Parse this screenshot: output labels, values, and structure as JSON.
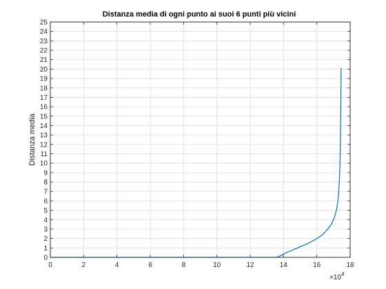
{
  "chart_data": {
    "type": "line",
    "title": "Distanza media di ogni punto ai suoi 6 punti più vicini",
    "xlabel": "",
    "ylabel": "Distanza media",
    "x_exponent_label": "×10",
    "x_exponent_power": "4",
    "xlim": [
      0,
      180000
    ],
    "ylim": [
      0,
      25
    ],
    "x_ticks": [
      0,
      20000,
      40000,
      60000,
      80000,
      100000,
      120000,
      140000,
      160000,
      180000
    ],
    "x_tick_labels": [
      "0",
      "2",
      "4",
      "6",
      "8",
      "10",
      "12",
      "14",
      "16",
      "18"
    ],
    "y_ticks": [
      0,
      1,
      2,
      3,
      4,
      5,
      6,
      7,
      8,
      9,
      10,
      11,
      12,
      13,
      14,
      15,
      16,
      17,
      18,
      19,
      20,
      21,
      22,
      23,
      24,
      25
    ],
    "y_tick_labels": [
      "0",
      "1",
      "2",
      "3",
      "4",
      "5",
      "6",
      "7",
      "8",
      "9",
      "10",
      "11",
      "12",
      "13",
      "14",
      "15",
      "16",
      "17",
      "18",
      "19",
      "20",
      "21",
      "22",
      "23",
      "24",
      "25"
    ],
    "grid": true,
    "series": [
      {
        "color": "#0072bd",
        "x": [
          0,
          135000,
          137000,
          139000,
          141000,
          143000,
          145000,
          147000,
          149000,
          151000,
          153000,
          155000,
          157000,
          159000,
          161000,
          163000,
          165000,
          167000,
          169000,
          170000,
          171000,
          172000,
          172500,
          173000,
          173300,
          173600,
          173800,
          174000,
          174200,
          174400,
          174500,
          174600
        ],
        "y": [
          0.0,
          0.0,
          0.05,
          0.25,
          0.45,
          0.6,
          0.75,
          0.9,
          1.05,
          1.2,
          1.35,
          1.5,
          1.7,
          1.9,
          2.1,
          2.35,
          2.7,
          3.1,
          3.6,
          4.0,
          4.5,
          5.2,
          5.8,
          6.6,
          7.5,
          8.5,
          9.5,
          11.0,
          13.0,
          16.0,
          18.0,
          20.1
        ]
      }
    ]
  }
}
